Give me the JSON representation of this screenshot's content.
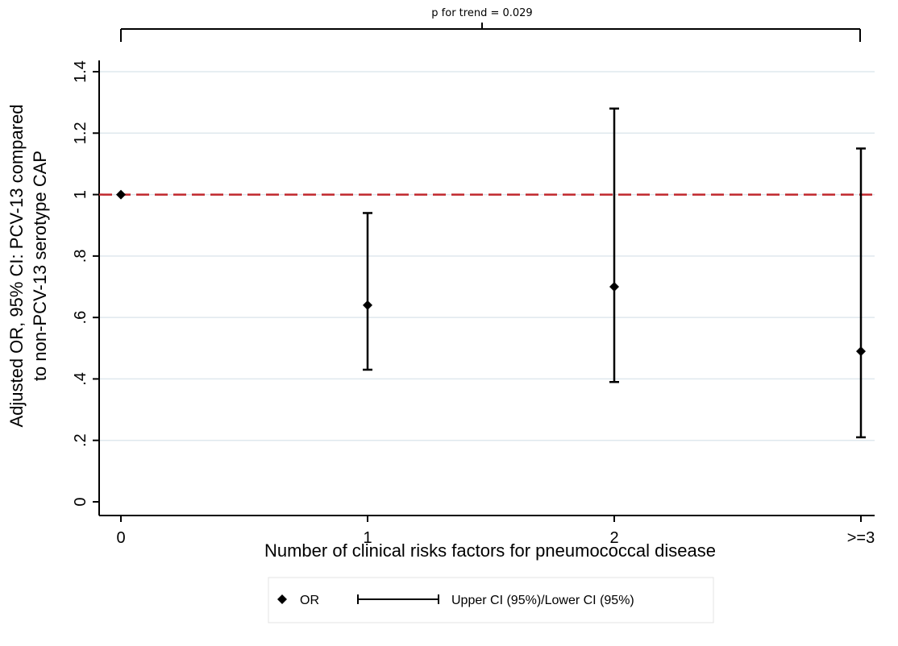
{
  "chart_data": {
    "type": "scatter",
    "title": "",
    "xlabel": "Number of clinical risks factors for pneumococcal disease",
    "ylabel_line1": "Adjusted OR, 95% CI: PCV-13 compared",
    "ylabel_line2": "to non-PCV-13 serotype CAP",
    "categories": [
      "0",
      "1",
      "2",
      ">=3"
    ],
    "ylim": [
      0,
      1.4
    ],
    "yticks": [
      0,
      0.2,
      0.4,
      0.6,
      0.8,
      1,
      1.2,
      1.4
    ],
    "ytick_labels": [
      "0",
      ".2",
      ".4",
      ".6",
      ".8",
      "1",
      "1.2",
      "1.4"
    ],
    "grid": true,
    "reference_line": {
      "y": 1,
      "color": "#c0272d",
      "style": "dashed"
    },
    "series": [
      {
        "name": "OR",
        "marker": "diamond",
        "values": [
          1.0,
          0.64,
          0.7,
          0.49
        ]
      },
      {
        "name": "Upper CI (95%)/Lower CI (95%)",
        "lower": [
          null,
          0.43,
          0.39,
          0.21
        ],
        "upper": [
          null,
          0.94,
          1.28,
          1.15
        ]
      }
    ],
    "annotation": {
      "text": "p for trend = 0.029",
      "from_category": "0",
      "to_category": ">=3"
    },
    "legend": {
      "position": "bottom",
      "items": [
        {
          "symbol": "diamond",
          "label": "OR"
        },
        {
          "symbol": "capped-line",
          "label": "Upper CI (95%)/Lower CI (95%)"
        }
      ]
    },
    "colors": {
      "grid": "#dfe8ee",
      "marker": "#000000",
      "reference": "#c0272d"
    }
  }
}
